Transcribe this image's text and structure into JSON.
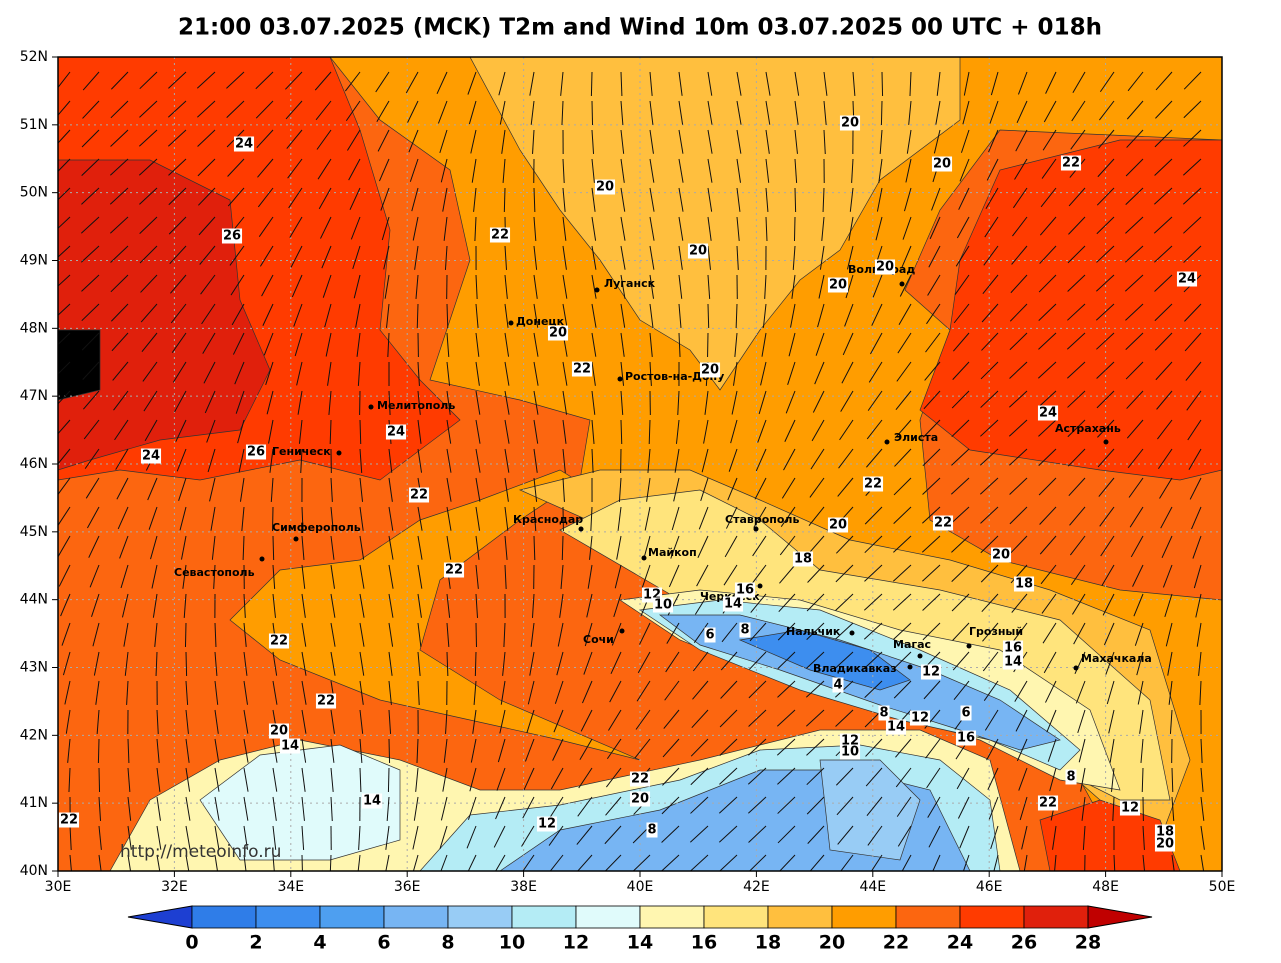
{
  "header": {
    "title": "21:00 03.07.2025 (MCK) T2m and Wind 10m 03.07.2025 00 UTC + 018h"
  },
  "map": {
    "lat_labels": [
      "52N",
      "51N",
      "50N",
      "49N",
      "48N",
      "47N",
      "46N",
      "45N",
      "44N",
      "43N",
      "42N",
      "41N",
      "40N"
    ],
    "lon_labels": [
      "30E",
      "32E",
      "34E",
      "36E",
      "38E",
      "40E",
      "42E",
      "44E",
      "46E",
      "48E",
      "50E"
    ],
    "cities": [
      "Луганск",
      "Донецк",
      "Ростов-на-Дону",
      "Волгоград",
      "Мелитополь",
      "Элиста",
      "Астрахань",
      "Геническ",
      "Краснодар",
      "Ставрополь",
      "Симферополь",
      "Майкоп",
      "Севастополь",
      "Черкесск",
      "Сочи",
      "Нальчик",
      "Магас",
      "Грозный",
      "Владикавказ",
      "Махачкала"
    ],
    "contour_labels": [
      "24",
      "26",
      "22",
      "20",
      "20",
      "20",
      "20",
      "22",
      "24",
      "20",
      "20",
      "20",
      "22",
      "20",
      "24",
      "26",
      "24",
      "24",
      "22",
      "22",
      "20",
      "22",
      "22",
      "18",
      "20",
      "18",
      "16",
      "12",
      "10",
      "14",
      "8",
      "6",
      "22",
      "16",
      "14",
      "12",
      "4",
      "22",
      "8",
      "12",
      "6",
      "14",
      "16",
      "20",
      "14",
      "12",
      "10",
      "8",
      "22",
      "20",
      "14",
      "22",
      "12",
      "22",
      "12",
      "8",
      "18",
      "20"
    ],
    "watermark": "http://meteoinfo.ru"
  },
  "colorbar": {
    "ticks": [
      0,
      2,
      4,
      6,
      8,
      10,
      12,
      14,
      16,
      18,
      20,
      22,
      24,
      26,
      28
    ],
    "colors": [
      "#2f7de8",
      "#3d8eef",
      "#4e9ff0",
      "#77b5f3",
      "#98ccf5",
      "#b4ecf5",
      "#e0fbfb",
      "#fff6b0",
      "#ffe47c",
      "#ffbf3e",
      "#ff9d00",
      "#fc6610",
      "#ff3b00",
      "#e0200c"
    ],
    "under_color": "#1d3fd2",
    "over_color": "#c00000"
  }
}
